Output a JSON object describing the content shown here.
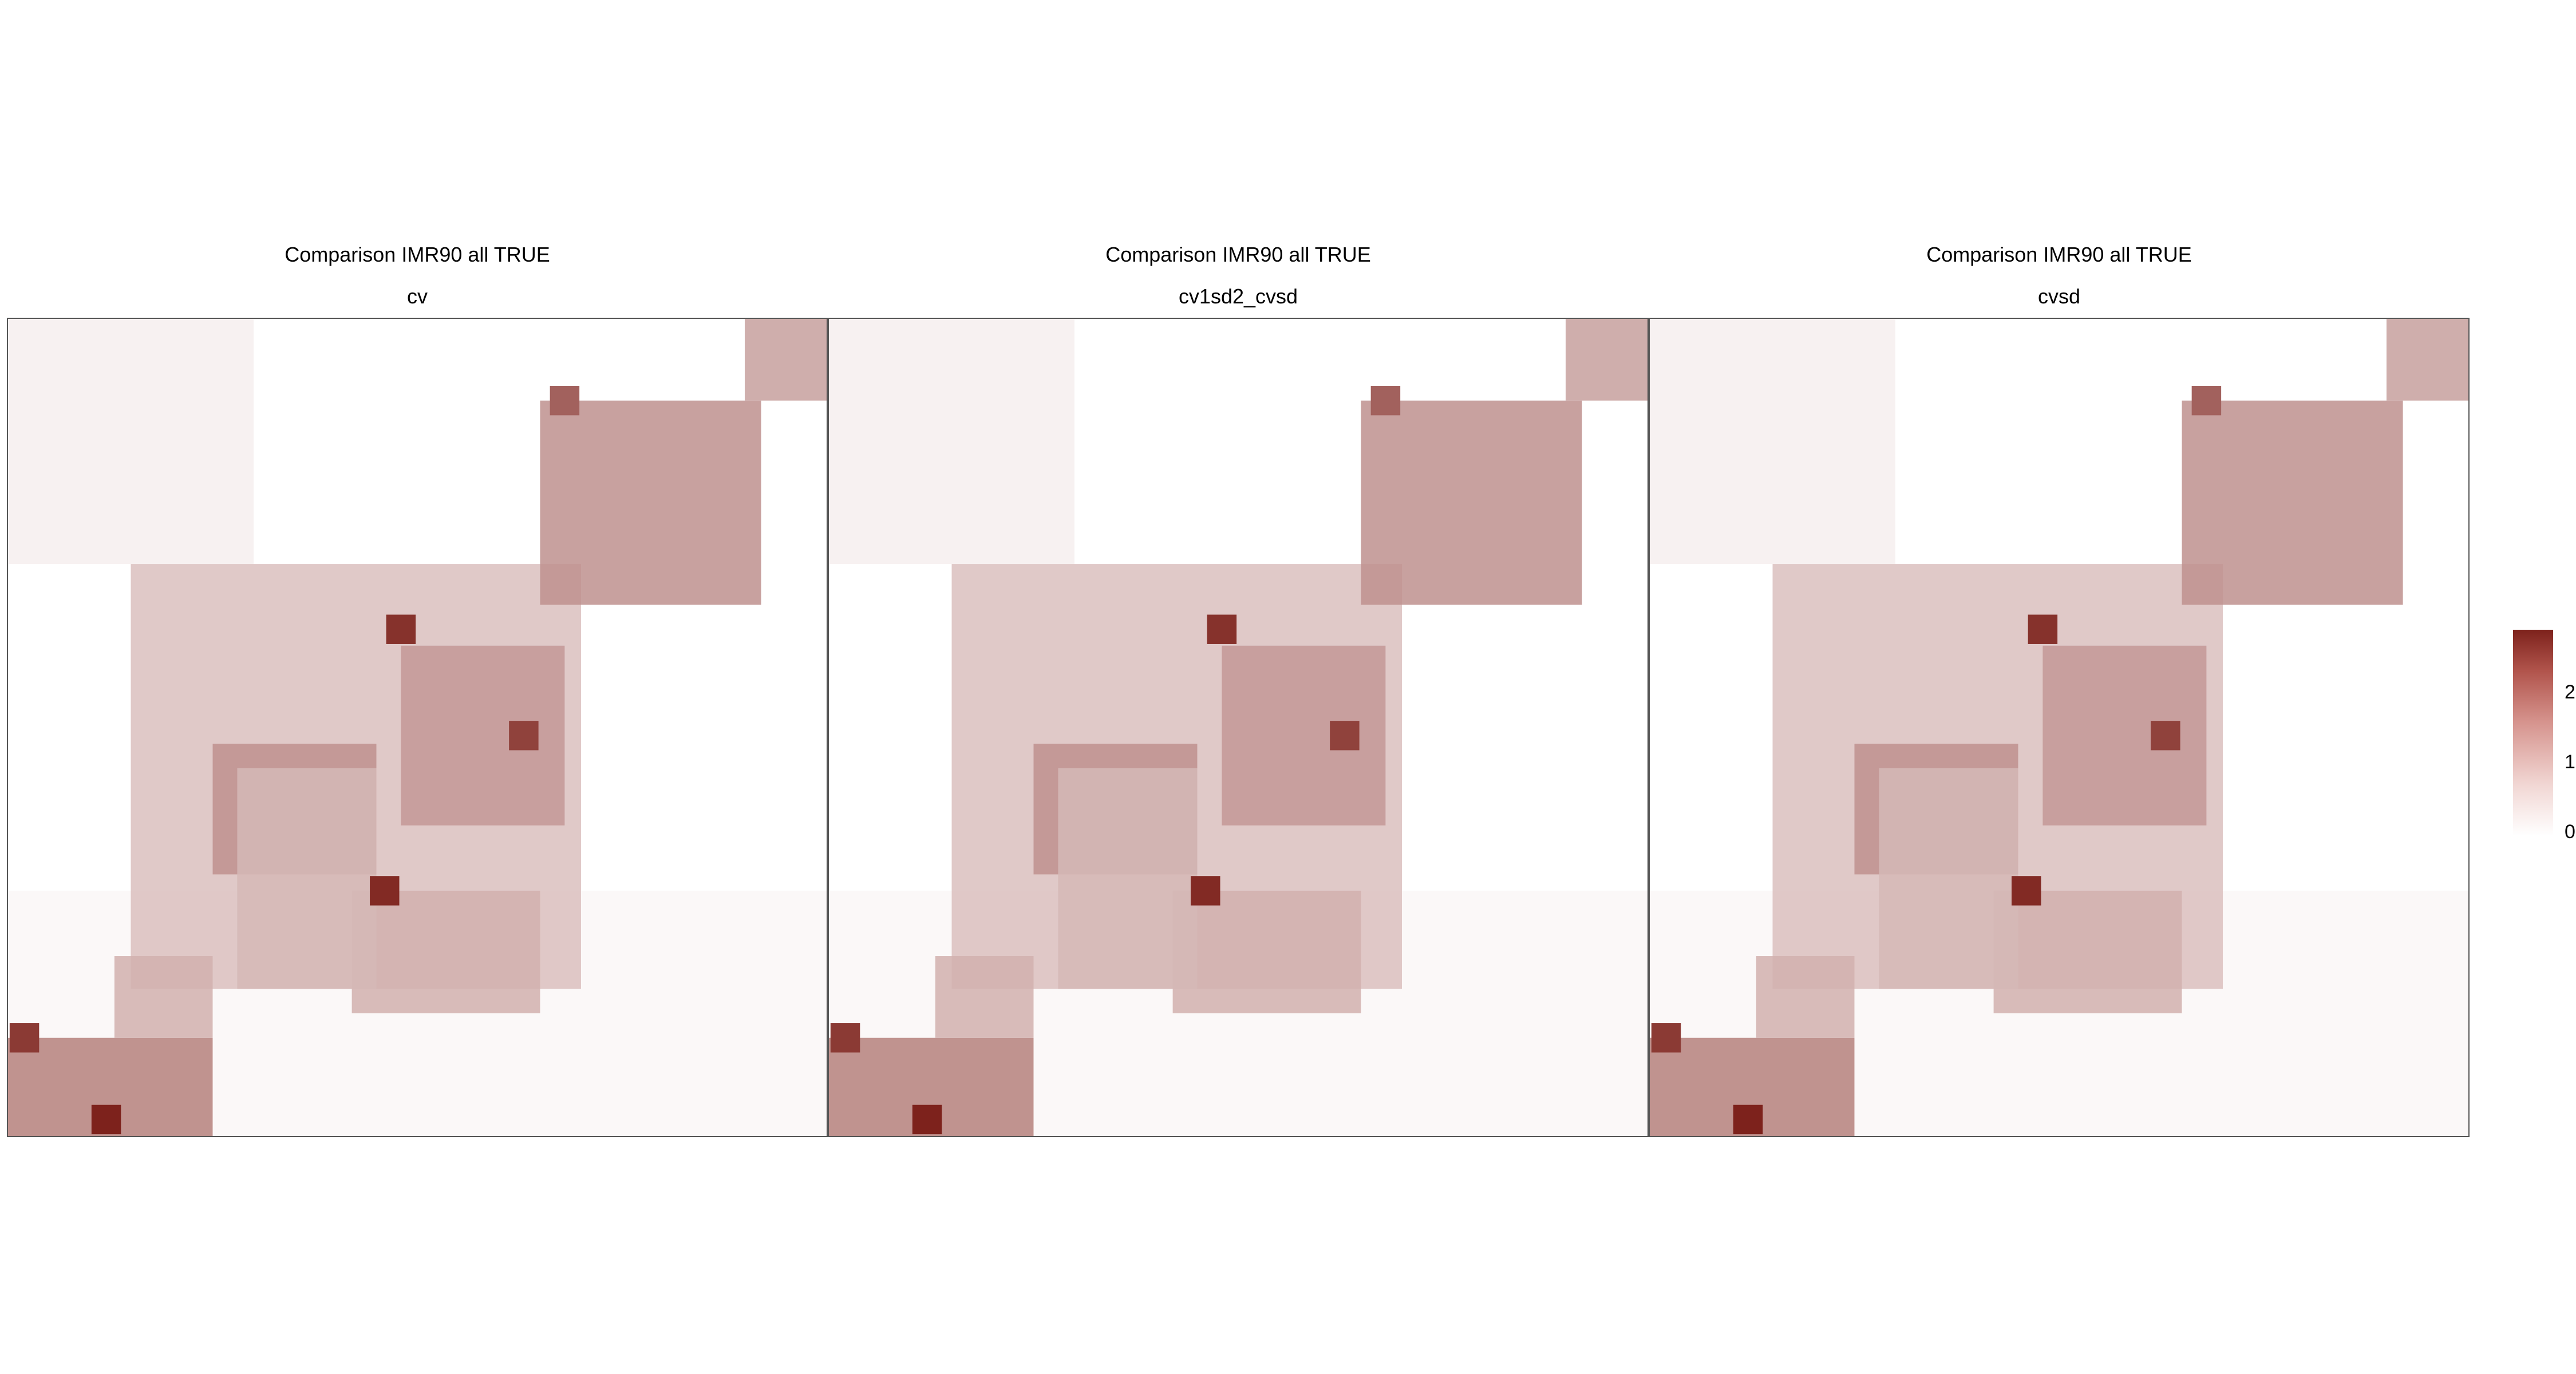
{
  "chart_data": [
    {
      "type": "heatmap",
      "title": "Comparison IMR90 all TRUE",
      "subtitle": "cv",
      "colorscale": [
        "#ffffff",
        "#7d221c"
      ],
      "value_range": [
        0,
        2.8
      ],
      "blocks": [
        [
          0.0,
          0.7,
          1.0,
          1.0,
          0.1
        ],
        [
          0.0,
          0.0,
          0.3,
          0.3,
          0.2
        ],
        [
          0.15,
          0.3,
          0.7,
          0.82,
          0.8
        ],
        [
          0.25,
          0.52,
          0.45,
          0.68,
          1.4
        ],
        [
          0.42,
          0.7,
          0.65,
          0.85,
          1.0
        ],
        [
          0.48,
          0.4,
          0.68,
          0.62,
          1.3
        ],
        [
          0.65,
          0.1,
          0.92,
          0.35,
          1.4
        ],
        [
          0.9,
          0.0,
          1.0,
          0.1,
          1.2
        ],
        [
          0.0,
          0.88,
          0.25,
          1.0,
          1.6
        ],
        [
          0.13,
          0.78,
          0.25,
          0.88,
          1.0
        ],
        [
          0.28,
          0.55,
          0.45,
          0.82,
          0.9
        ]
      ],
      "peaks": [
        [
          0.48,
          0.38,
          2.6
        ],
        [
          0.63,
          0.51,
          2.4
        ],
        [
          0.46,
          0.7,
          2.7
        ],
        [
          0.12,
          0.98,
          2.8
        ],
        [
          0.02,
          0.88,
          2.5
        ],
        [
          0.68,
          0.1,
          2.0
        ]
      ]
    },
    {
      "type": "heatmap",
      "title": "Comparison IMR90 all TRUE",
      "subtitle": "cv1sd2_cvsd",
      "colorscale": [
        "#ffffff",
        "#7d221c"
      ],
      "value_range": [
        0,
        2.8
      ],
      "blocks": [
        [
          0.0,
          0.7,
          1.0,
          1.0,
          0.1
        ],
        [
          0.0,
          0.0,
          0.3,
          0.3,
          0.2
        ],
        [
          0.15,
          0.3,
          0.7,
          0.82,
          0.8
        ],
        [
          0.25,
          0.52,
          0.45,
          0.68,
          1.4
        ],
        [
          0.42,
          0.7,
          0.65,
          0.85,
          1.0
        ],
        [
          0.48,
          0.4,
          0.68,
          0.62,
          1.3
        ],
        [
          0.65,
          0.1,
          0.92,
          0.35,
          1.4
        ],
        [
          0.9,
          0.0,
          1.0,
          0.1,
          1.2
        ],
        [
          0.0,
          0.88,
          0.25,
          1.0,
          1.6
        ],
        [
          0.13,
          0.78,
          0.25,
          0.88,
          1.0
        ],
        [
          0.28,
          0.55,
          0.45,
          0.82,
          0.9
        ]
      ],
      "peaks": [
        [
          0.48,
          0.38,
          2.6
        ],
        [
          0.63,
          0.51,
          2.4
        ],
        [
          0.46,
          0.7,
          2.7
        ],
        [
          0.12,
          0.98,
          2.8
        ],
        [
          0.02,
          0.88,
          2.5
        ],
        [
          0.68,
          0.1,
          2.0
        ]
      ]
    },
    {
      "type": "heatmap",
      "title": "Comparison IMR90 all TRUE",
      "subtitle": "cvsd",
      "colorscale": [
        "#ffffff",
        "#7d221c"
      ],
      "value_range": [
        0,
        2.8
      ],
      "blocks": [
        [
          0.0,
          0.7,
          1.0,
          1.0,
          0.1
        ],
        [
          0.0,
          0.0,
          0.3,
          0.3,
          0.2
        ],
        [
          0.15,
          0.3,
          0.7,
          0.82,
          0.8
        ],
        [
          0.25,
          0.52,
          0.45,
          0.68,
          1.4
        ],
        [
          0.42,
          0.7,
          0.65,
          0.85,
          1.0
        ],
        [
          0.48,
          0.4,
          0.68,
          0.62,
          1.3
        ],
        [
          0.65,
          0.1,
          0.92,
          0.35,
          1.4
        ],
        [
          0.9,
          0.0,
          1.0,
          0.1,
          1.2
        ],
        [
          0.0,
          0.88,
          0.25,
          1.0,
          1.6
        ],
        [
          0.13,
          0.78,
          0.25,
          0.88,
          1.0
        ],
        [
          0.28,
          0.55,
          0.45,
          0.82,
          0.9
        ]
      ],
      "peaks": [
        [
          0.48,
          0.38,
          2.6
        ],
        [
          0.63,
          0.51,
          2.4
        ],
        [
          0.46,
          0.7,
          2.7
        ],
        [
          0.12,
          0.98,
          2.8
        ],
        [
          0.02,
          0.88,
          2.5
        ],
        [
          0.68,
          0.1,
          2.0
        ]
      ]
    }
  ],
  "colorbar": {
    "ticks": [
      "2",
      "1",
      "0"
    ],
    "tick_values": [
      2,
      1,
      0
    ]
  }
}
